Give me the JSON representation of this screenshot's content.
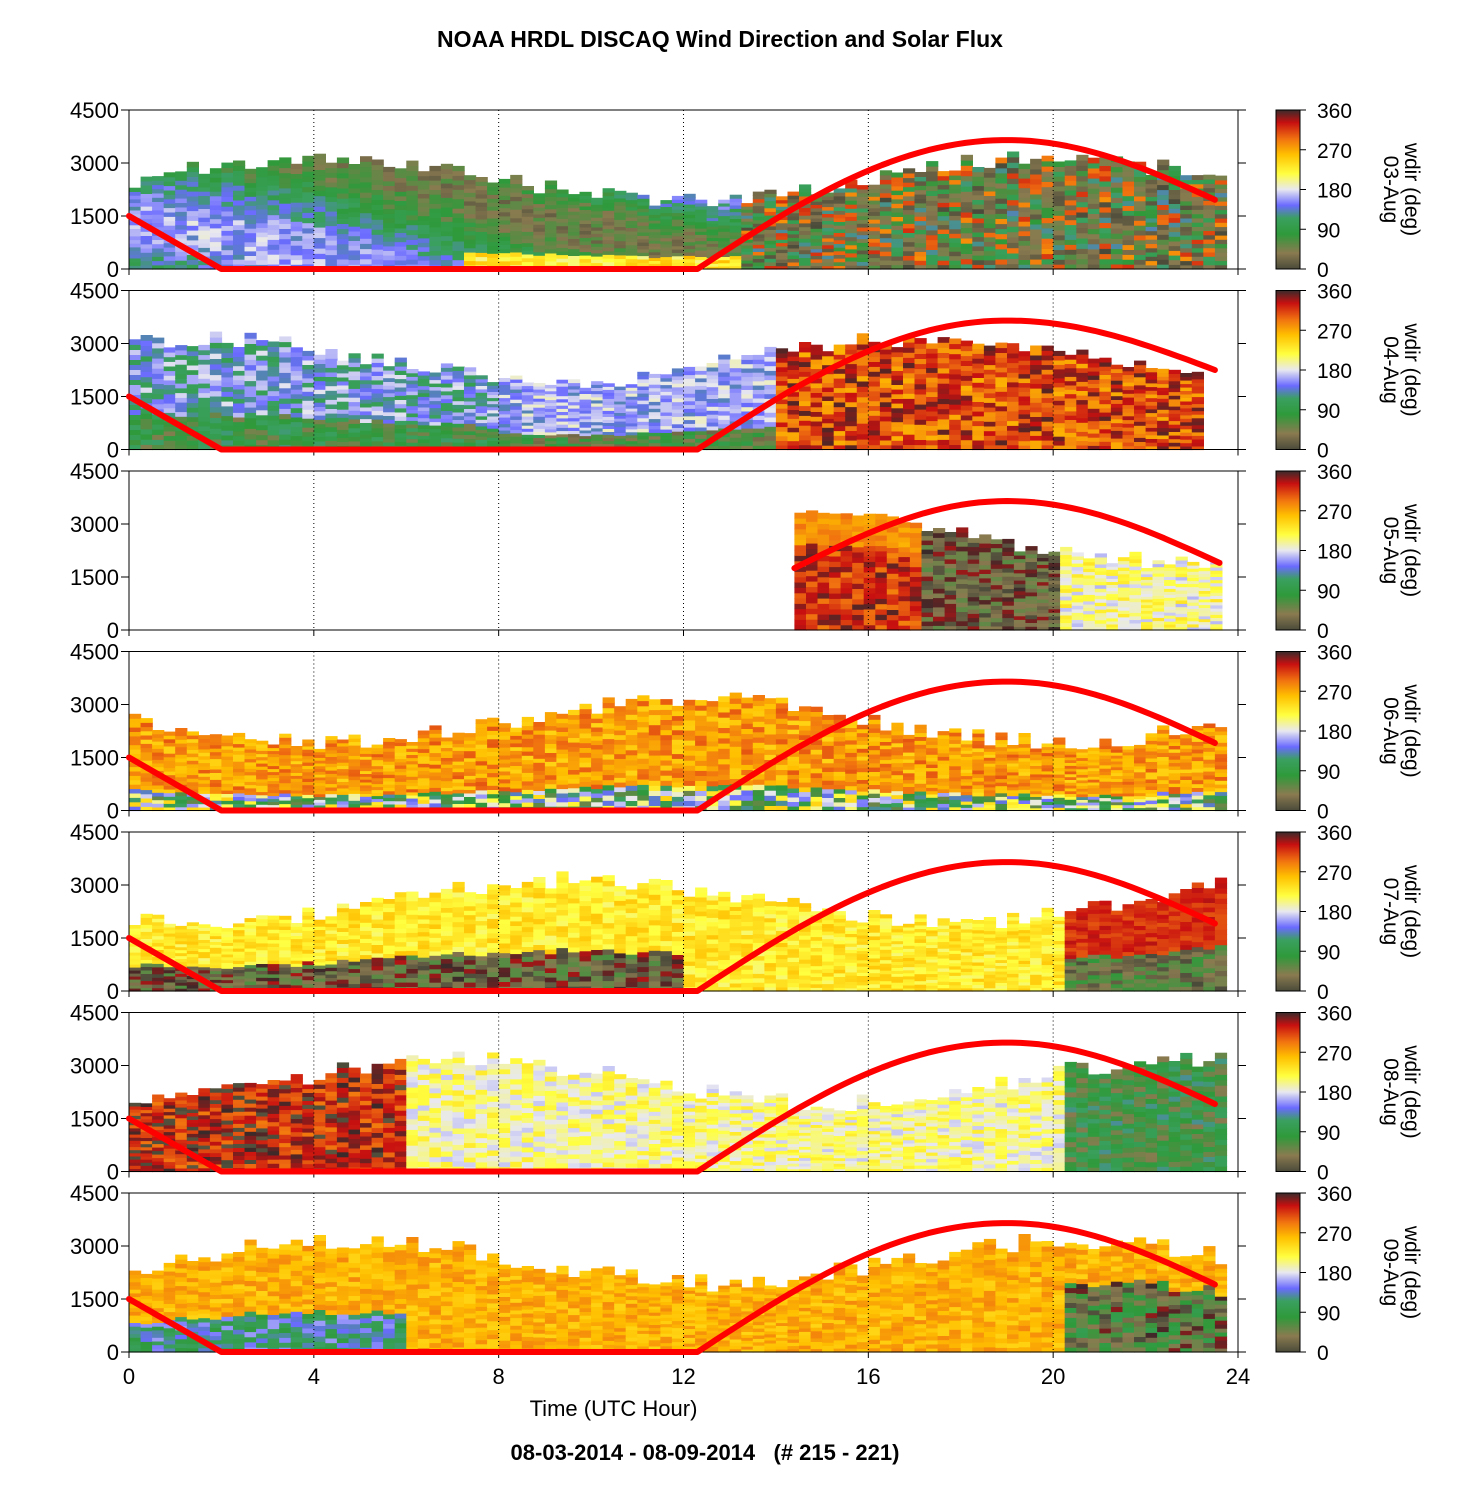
{
  "title": "NOAA HRDL DISCAQ Wind Direction and Solar Flux",
  "footer": "08-03-2014 - 08-09-2014   (# 215 - 221)",
  "chart_data": {
    "type": "heatmap",
    "xlabel": "Time (UTC Hour)",
    "xlim": [
      0,
      24
    ],
    "x_ticks": [
      0,
      4,
      8,
      12,
      16,
      20,
      24
    ],
    "ylim": [
      0,
      4500
    ],
    "y_ticks": [
      0,
      1500,
      3000,
      4500
    ],
    "colorbar": {
      "label": "wdir (deg)",
      "range": [
        0,
        360
      ],
      "ticks": [
        0,
        90,
        180,
        270,
        360
      ]
    },
    "solar_flux_color": "#ff0000",
    "panels": [
      {
        "date": "03-Aug",
        "data_start": 0,
        "data_end": 23.6,
        "profile": "mixed_blue_green_top_low_warm",
        "solar_flux": {
          "night_end": 2.0,
          "rise": 12.3,
          "peak_hour": 19.0,
          "peak": 3650,
          "end_value": 1900,
          "start_value": 1500
        }
      },
      {
        "date": "04-Aug",
        "data_start": 0,
        "data_end": 23.1,
        "profile": "blue_then_dark_brown",
        "solar_flux": {
          "night_end": 2.0,
          "rise": 12.3,
          "peak_hour": 19.0,
          "peak": 3650,
          "end_value": 2200,
          "start_value": 1500
        }
      },
      {
        "date": "05-Aug",
        "data_start": 14.4,
        "data_end": 23.6,
        "profile": "dark_red_then_yellow",
        "solar_flux": {
          "night_end": null,
          "rise": 14.4,
          "peak_hour": 19.0,
          "peak": 3650,
          "end_value": 1900,
          "start_value": 1750
        }
      },
      {
        "date": "06-Aug",
        "data_start": 0,
        "data_end": 23.6,
        "profile": "orange_red",
        "solar_flux": {
          "night_end": 2.0,
          "rise": 12.3,
          "peak_hour": 19.0,
          "peak": 3650,
          "end_value": 1850,
          "start_value": 1500
        }
      },
      {
        "date": "07-Aug",
        "data_start": 0,
        "data_end": 23.6,
        "profile": "orange_yellow_dark_low",
        "solar_flux": {
          "night_end": 2.0,
          "rise": 12.3,
          "peak_hour": 19.0,
          "peak": 3650,
          "end_value": 1850,
          "start_value": 1500
        }
      },
      {
        "date": "08-Aug",
        "data_start": 0,
        "data_end": 23.6,
        "profile": "dark_then_yellow_green",
        "solar_flux": {
          "night_end": 2.0,
          "rise": 12.3,
          "peak_hour": 19.0,
          "peak": 3650,
          "end_value": 1850,
          "start_value": 1500
        }
      },
      {
        "date": "09-Aug",
        "data_start": 0,
        "data_end": 23.6,
        "profile": "orange_with_blue_low",
        "solar_flux": {
          "night_end": 2.0,
          "rise": 12.3,
          "peak_hour": 19.0,
          "peak": 3650,
          "end_value": 1850,
          "start_value": 1500
        }
      }
    ]
  }
}
